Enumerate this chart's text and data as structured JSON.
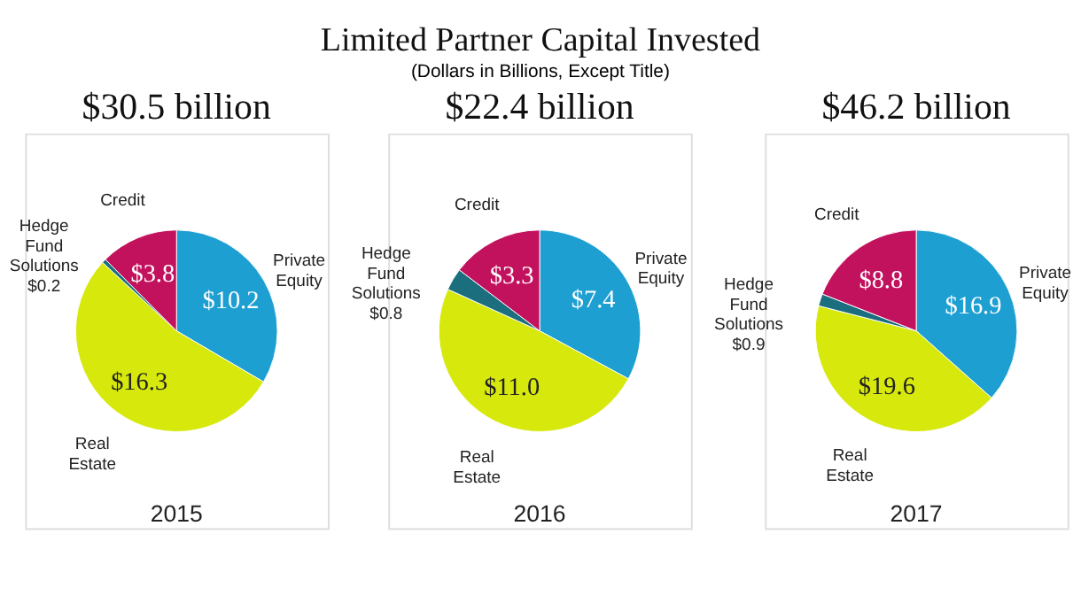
{
  "chart_data": [
    {
      "type": "other",
      "title": "Limited Partner Capital Invested",
      "subtitle": "(Dollars in Billions, Except Title)"
    },
    {
      "type": "pie",
      "title": "$30.5 billion",
      "xlabel": "2015",
      "categories": [
        "Private Equity",
        "Real Estate",
        "Hedge Fund Solutions",
        "Credit"
      ],
      "values": [
        10.2,
        16.3,
        0.2,
        3.8
      ],
      "value_labels": [
        "$10.2",
        "$16.3",
        "$0.2",
        "$3.8"
      ],
      "colors": [
        "#1e9fd2",
        "#d6e80c",
        "#1b6e7e",
        "#c2125e"
      ]
    },
    {
      "type": "pie",
      "title": "$22.4 billion",
      "xlabel": "2016",
      "categories": [
        "Private Equity",
        "Real Estate",
        "Hedge Fund Solutions",
        "Credit"
      ],
      "values": [
        7.4,
        11.0,
        0.8,
        3.3
      ],
      "value_labels": [
        "$7.4",
        "$11.0",
        "$0.8",
        "$3.3"
      ],
      "colors": [
        "#1e9fd2",
        "#d6e80c",
        "#1b6e7e",
        "#c2125e"
      ]
    },
    {
      "type": "pie",
      "title": "$46.2 billion",
      "xlabel": "2017",
      "categories": [
        "Private Equity",
        "Real Estate",
        "Hedge Fund Solutions",
        "Credit"
      ],
      "values": [
        16.9,
        19.6,
        0.9,
        8.8
      ],
      "value_labels": [
        "$16.9",
        "$19.6",
        "$0.9",
        "$8.8"
      ],
      "colors": [
        "#1e9fd2",
        "#d6e80c",
        "#1b6e7e",
        "#c2125e"
      ]
    }
  ]
}
